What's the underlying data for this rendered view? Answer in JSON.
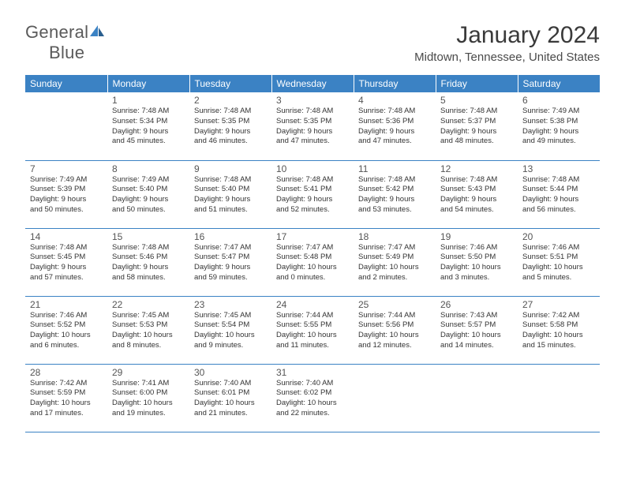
{
  "brand": {
    "part1": "General",
    "part2": "Blue"
  },
  "title": "January 2024",
  "location": "Midtown, Tennessee, United States",
  "colors": {
    "header_bg": "#3b82c4",
    "header_fg": "#ffffff",
    "rule": "#3b82c4",
    "text": "#333333"
  },
  "day_headers": [
    "Sunday",
    "Monday",
    "Tuesday",
    "Wednesday",
    "Thursday",
    "Friday",
    "Saturday"
  ],
  "weeks": [
    [
      {
        "n": "",
        "lines": []
      },
      {
        "n": "1",
        "lines": [
          "Sunrise: 7:48 AM",
          "Sunset: 5:34 PM",
          "Daylight: 9 hours",
          "and 45 minutes."
        ]
      },
      {
        "n": "2",
        "lines": [
          "Sunrise: 7:48 AM",
          "Sunset: 5:35 PM",
          "Daylight: 9 hours",
          "and 46 minutes."
        ]
      },
      {
        "n": "3",
        "lines": [
          "Sunrise: 7:48 AM",
          "Sunset: 5:35 PM",
          "Daylight: 9 hours",
          "and 47 minutes."
        ]
      },
      {
        "n": "4",
        "lines": [
          "Sunrise: 7:48 AM",
          "Sunset: 5:36 PM",
          "Daylight: 9 hours",
          "and 47 minutes."
        ]
      },
      {
        "n": "5",
        "lines": [
          "Sunrise: 7:48 AM",
          "Sunset: 5:37 PM",
          "Daylight: 9 hours",
          "and 48 minutes."
        ]
      },
      {
        "n": "6",
        "lines": [
          "Sunrise: 7:49 AM",
          "Sunset: 5:38 PM",
          "Daylight: 9 hours",
          "and 49 minutes."
        ]
      }
    ],
    [
      {
        "n": "7",
        "lines": [
          "Sunrise: 7:49 AM",
          "Sunset: 5:39 PM",
          "Daylight: 9 hours",
          "and 50 minutes."
        ]
      },
      {
        "n": "8",
        "lines": [
          "Sunrise: 7:49 AM",
          "Sunset: 5:40 PM",
          "Daylight: 9 hours",
          "and 50 minutes."
        ]
      },
      {
        "n": "9",
        "lines": [
          "Sunrise: 7:48 AM",
          "Sunset: 5:40 PM",
          "Daylight: 9 hours",
          "and 51 minutes."
        ]
      },
      {
        "n": "10",
        "lines": [
          "Sunrise: 7:48 AM",
          "Sunset: 5:41 PM",
          "Daylight: 9 hours",
          "and 52 minutes."
        ]
      },
      {
        "n": "11",
        "lines": [
          "Sunrise: 7:48 AM",
          "Sunset: 5:42 PM",
          "Daylight: 9 hours",
          "and 53 minutes."
        ]
      },
      {
        "n": "12",
        "lines": [
          "Sunrise: 7:48 AM",
          "Sunset: 5:43 PM",
          "Daylight: 9 hours",
          "and 54 minutes."
        ]
      },
      {
        "n": "13",
        "lines": [
          "Sunrise: 7:48 AM",
          "Sunset: 5:44 PM",
          "Daylight: 9 hours",
          "and 56 minutes."
        ]
      }
    ],
    [
      {
        "n": "14",
        "lines": [
          "Sunrise: 7:48 AM",
          "Sunset: 5:45 PM",
          "Daylight: 9 hours",
          "and 57 minutes."
        ]
      },
      {
        "n": "15",
        "lines": [
          "Sunrise: 7:48 AM",
          "Sunset: 5:46 PM",
          "Daylight: 9 hours",
          "and 58 minutes."
        ]
      },
      {
        "n": "16",
        "lines": [
          "Sunrise: 7:47 AM",
          "Sunset: 5:47 PM",
          "Daylight: 9 hours",
          "and 59 minutes."
        ]
      },
      {
        "n": "17",
        "lines": [
          "Sunrise: 7:47 AM",
          "Sunset: 5:48 PM",
          "Daylight: 10 hours",
          "and 0 minutes."
        ]
      },
      {
        "n": "18",
        "lines": [
          "Sunrise: 7:47 AM",
          "Sunset: 5:49 PM",
          "Daylight: 10 hours",
          "and 2 minutes."
        ]
      },
      {
        "n": "19",
        "lines": [
          "Sunrise: 7:46 AM",
          "Sunset: 5:50 PM",
          "Daylight: 10 hours",
          "and 3 minutes."
        ]
      },
      {
        "n": "20",
        "lines": [
          "Sunrise: 7:46 AM",
          "Sunset: 5:51 PM",
          "Daylight: 10 hours",
          "and 5 minutes."
        ]
      }
    ],
    [
      {
        "n": "21",
        "lines": [
          "Sunrise: 7:46 AM",
          "Sunset: 5:52 PM",
          "Daylight: 10 hours",
          "and 6 minutes."
        ]
      },
      {
        "n": "22",
        "lines": [
          "Sunrise: 7:45 AM",
          "Sunset: 5:53 PM",
          "Daylight: 10 hours",
          "and 8 minutes."
        ]
      },
      {
        "n": "23",
        "lines": [
          "Sunrise: 7:45 AM",
          "Sunset: 5:54 PM",
          "Daylight: 10 hours",
          "and 9 minutes."
        ]
      },
      {
        "n": "24",
        "lines": [
          "Sunrise: 7:44 AM",
          "Sunset: 5:55 PM",
          "Daylight: 10 hours",
          "and 11 minutes."
        ]
      },
      {
        "n": "25",
        "lines": [
          "Sunrise: 7:44 AM",
          "Sunset: 5:56 PM",
          "Daylight: 10 hours",
          "and 12 minutes."
        ]
      },
      {
        "n": "26",
        "lines": [
          "Sunrise: 7:43 AM",
          "Sunset: 5:57 PM",
          "Daylight: 10 hours",
          "and 14 minutes."
        ]
      },
      {
        "n": "27",
        "lines": [
          "Sunrise: 7:42 AM",
          "Sunset: 5:58 PM",
          "Daylight: 10 hours",
          "and 15 minutes."
        ]
      }
    ],
    [
      {
        "n": "28",
        "lines": [
          "Sunrise: 7:42 AM",
          "Sunset: 5:59 PM",
          "Daylight: 10 hours",
          "and 17 minutes."
        ]
      },
      {
        "n": "29",
        "lines": [
          "Sunrise: 7:41 AM",
          "Sunset: 6:00 PM",
          "Daylight: 10 hours",
          "and 19 minutes."
        ]
      },
      {
        "n": "30",
        "lines": [
          "Sunrise: 7:40 AM",
          "Sunset: 6:01 PM",
          "Daylight: 10 hours",
          "and 21 minutes."
        ]
      },
      {
        "n": "31",
        "lines": [
          "Sunrise: 7:40 AM",
          "Sunset: 6:02 PM",
          "Daylight: 10 hours",
          "and 22 minutes."
        ]
      },
      {
        "n": "",
        "lines": []
      },
      {
        "n": "",
        "lines": []
      },
      {
        "n": "",
        "lines": []
      }
    ]
  ]
}
